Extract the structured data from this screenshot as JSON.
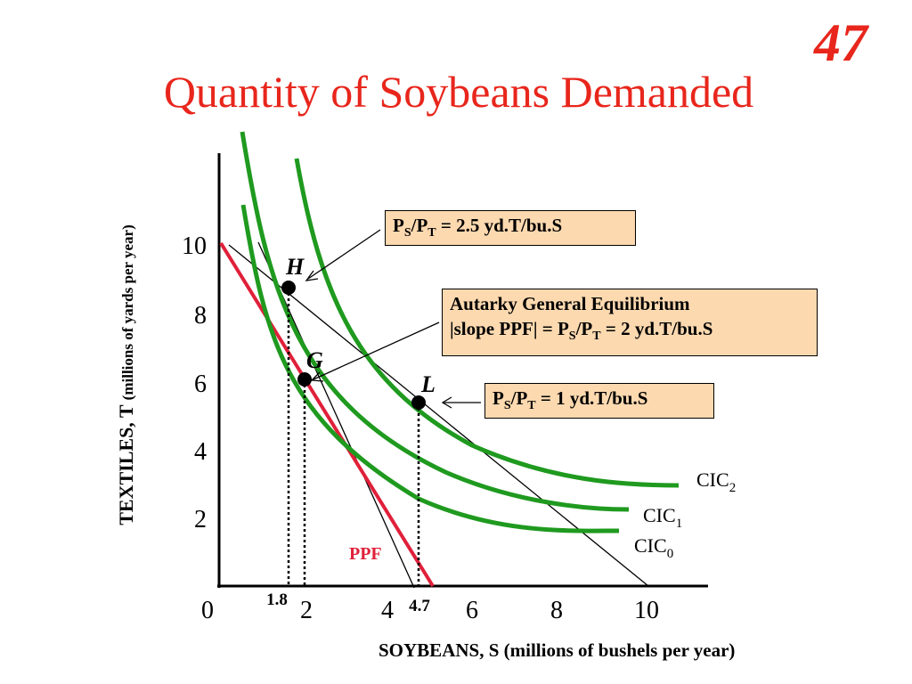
{
  "slide_number": "47",
  "title": "Quantity of Soybeans Demanded",
  "y_axis": {
    "label": "TEXTILES, T",
    "unit": "(millions of yards per year)",
    "ticks": [
      "2",
      "4",
      "6",
      "8",
      "10"
    ]
  },
  "x_axis": {
    "label": "SOYBEANS, S (millions of bushels per year)",
    "ticks": [
      "0",
      "2",
      "4",
      "6",
      "8",
      "10"
    ]
  },
  "x_markers": [
    "1.8",
    "4.7"
  ],
  "points": {
    "H": "H",
    "G": "G",
    "L": "L"
  },
  "curves": {
    "ppf": "PPF",
    "cic0": {
      "name": "CIC",
      "sub": "0"
    },
    "cic1": {
      "name": "CIC",
      "sub": "1"
    },
    "cic2": {
      "name": "CIC",
      "sub": "2"
    }
  },
  "boxes": {
    "price_high": {
      "p1": "P",
      "s1": "S",
      "p2": "/P",
      "s2": "T",
      "rest": " = 2.5 yd.T/bu.S"
    },
    "autarky": {
      "line1": "Autarky General Equilibrium",
      "l2a": "|slope PPF| = P",
      "s1": "S",
      "l2b": "/P",
      "s2": "T",
      "l2c": " = 2 yd.T/bu.S"
    },
    "price_low": {
      "p1": "P",
      "s1": "S",
      "p2": "/P",
      "s2": "T",
      "rest": " = 1 yd.T/bu.S"
    }
  },
  "colors": {
    "title": "#e8261c",
    "ppf": "#e0203a",
    "cic": "#1f9a1f",
    "box_fill": "#fdd9b0"
  }
}
